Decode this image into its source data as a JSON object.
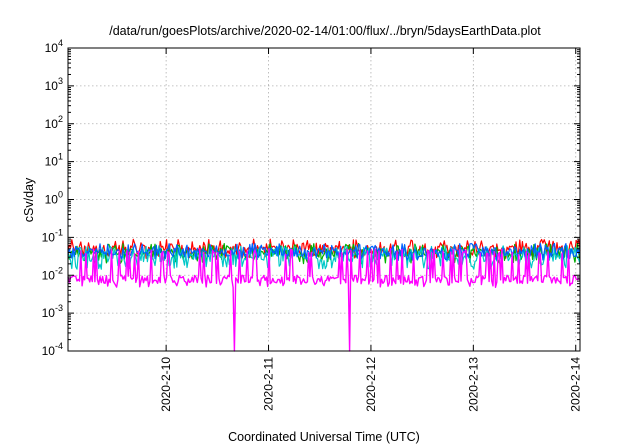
{
  "chart_data": {
    "type": "line",
    "title": "/data/run/goesPlots/archive/2020-02-14/01:00/flux/../bryn/5daysEarthData.plot",
    "xlabel": "Coordinated Universal Time (UTC)",
    "ylabel": "cSv/day",
    "y_scale": "log",
    "ylim": [
      0.0001,
      10000
    ],
    "y_ticks": [
      {
        "value": 0.0001,
        "base": "10",
        "exp": "-4"
      },
      {
        "value": 0.001,
        "base": "10",
        "exp": "-3"
      },
      {
        "value": 0.01,
        "base": "10",
        "exp": "-2"
      },
      {
        "value": 0.1,
        "base": "10",
        "exp": "-1"
      },
      {
        "value": 1,
        "base": "10",
        "exp": "0"
      },
      {
        "value": 10,
        "base": "10",
        "exp": "1"
      },
      {
        "value": 100,
        "base": "10",
        "exp": "2"
      },
      {
        "value": 1000,
        "base": "10",
        "exp": "3"
      },
      {
        "value": 10000,
        "base": "10",
        "exp": "4"
      }
    ],
    "xlim": [
      "2020-02-09 01:00",
      "2020-02-14 01:00"
    ],
    "x_ticks": [
      {
        "value": "2020-02-10 00:00",
        "label": "2020-2-10"
      },
      {
        "value": "2020-02-11 00:00",
        "label": "2020-2-11"
      },
      {
        "value": "2020-02-12 00:00",
        "label": "2020-2-12"
      },
      {
        "value": "2020-02-13 00:00",
        "label": "2020-2-13"
      },
      {
        "value": "2020-02-14 00:00",
        "label": "2020-2-14"
      }
    ],
    "grid": true,
    "series": [
      {
        "color": "#ff0000",
        "typical": 0.05,
        "low": 0.035,
        "high": 0.09
      },
      {
        "color": "#00b000",
        "typical": 0.04,
        "low": 0.025,
        "high": 0.07
      },
      {
        "color": "#00c8c8",
        "typical": 0.03,
        "low": 0.018,
        "high": 0.06
      },
      {
        "color": "#0060ff",
        "typical": 0.042,
        "low": 0.03,
        "high": 0.07
      },
      {
        "color": "#ff00ff",
        "typical": 0.008,
        "low": 0.006,
        "high": 0.05,
        "dropouts": [
          "2020-02-10 16:00",
          "2020-02-11 19:00"
        ]
      }
    ]
  }
}
